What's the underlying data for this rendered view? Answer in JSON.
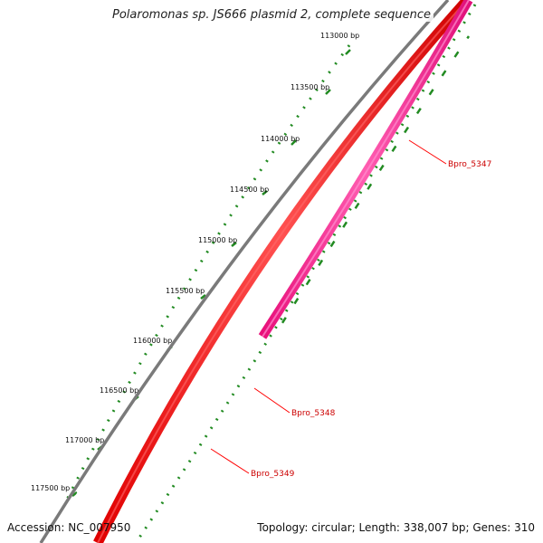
{
  "title": "Polaromonas sp. JS666 plasmid 2, complete sequence",
  "accession": "Accession: NC_007950",
  "summary": "Topology: circular; Length: 338,007 bp; Genes: 310",
  "ruler_labels": [
    "113000 bp",
    "113500 bp",
    "114000 bp",
    "114500 bp",
    "115000 bp",
    "115500 bp",
    "116000 bp",
    "116500 bp",
    "117000 bp",
    "117500 bp"
  ],
  "genes": [
    {
      "name": "Bpro_5347",
      "color": "#ff1493"
    },
    {
      "name": "Bpro_5348",
      "color": "#ff0000"
    },
    {
      "name": "Bpro_5349",
      "color": "#ff0000"
    }
  ],
  "colors": {
    "backbone": "#777777",
    "forward_genes": "#ff0000",
    "reverse_genes": "#ff1493",
    "tick_marks": "#228b22",
    "label_lines": "#ff0000"
  }
}
